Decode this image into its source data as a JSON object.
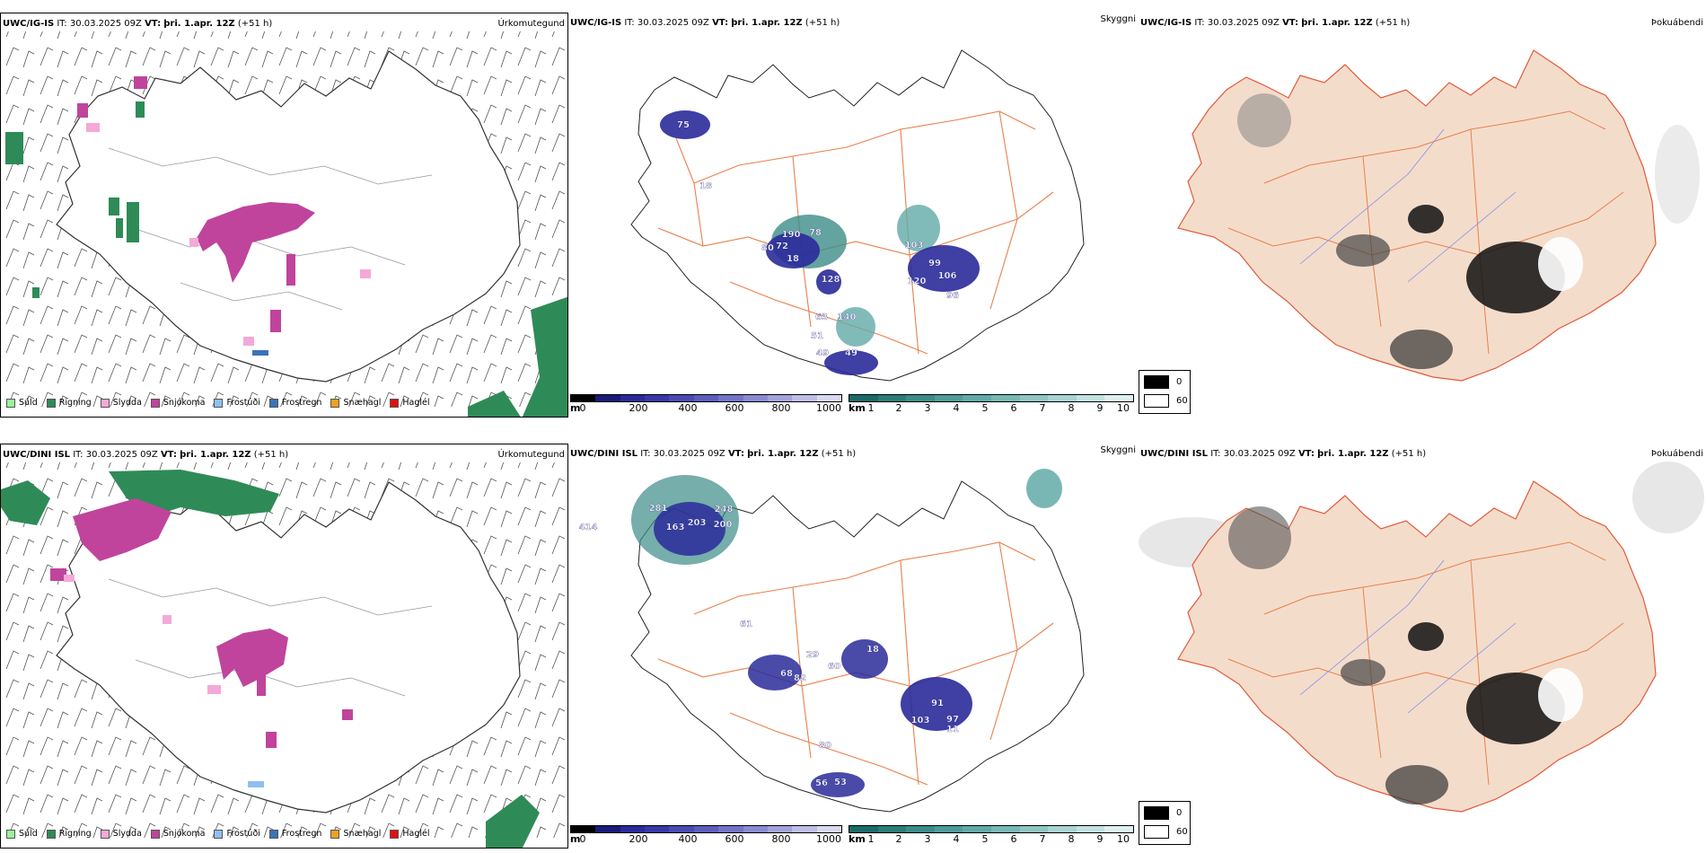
{
  "rows": [
    {
      "precip": {
        "model": "UWC/IG-IS",
        "it_label": "IT:",
        "it_value": "30.03.2025 09Z",
        "vt_label": "VT:",
        "vt_value": "þri. 1.apr. 12Z",
        "lead": "(+51 h)",
        "panel_name": "Úrkomutegund"
      },
      "cloud": {
        "model": "UWC/IG-IS",
        "it_label": "IT:",
        "it_value": "30.03.2025 09Z",
        "vt_label": "VT:",
        "vt_value": "þri. 1.apr. 12Z",
        "lead": "(+51 h)",
        "panel_name": "Skyggni",
        "labels": [
          "75",
          "18",
          "190",
          "18",
          "103",
          "99",
          "120",
          "106",
          "96",
          "80",
          "72",
          "78",
          "128",
          "63",
          "51",
          "49",
          "49",
          "140"
        ]
      },
      "fog": {
        "model": "UWC/IG-IS",
        "it_label": "IT:",
        "it_value": "30.03.2025 09Z",
        "vt_label": "VT:",
        "vt_value": "þri. 1.apr. 12Z",
        "lead": "(+51 h)",
        "panel_name": "Þokuábendi"
      }
    },
    {
      "precip": {
        "model": "UWC/DINI ISL",
        "it_label": "IT:",
        "it_value": "30.03.2025 09Z",
        "vt_label": "VT:",
        "vt_value": "þri. 1.apr. 12Z",
        "lead": "(+51 h)",
        "panel_name": "Úrkomutegund"
      },
      "cloud": {
        "model": "UWC/DINI ISL",
        "it_label": "IT:",
        "it_value": "30.03.2025 09Z",
        "vt_label": "VT:",
        "vt_value": "þri. 1.apr. 12Z",
        "lead": "(+51 h)",
        "panel_name": "Skyggni",
        "labels": [
          "414",
          "281",
          "203",
          "200",
          "248",
          "163",
          "68",
          "29",
          "60",
          "18",
          "82",
          "91",
          "103",
          "97",
          "11",
          "80",
          "56",
          "53",
          "61"
        ]
      },
      "fog": {
        "model": "UWC/DINI ISL",
        "it_label": "IT:",
        "it_value": "30.03.2025 09Z",
        "vt_label": "VT:",
        "vt_value": "þri. 1.apr. 12Z",
        "lead": "(+51 h)",
        "panel_name": "Þokuábendi"
      }
    }
  ],
  "precip_legend": [
    {
      "label": "Súld",
      "color": "#98f598"
    },
    {
      "label": "Rigning",
      "color": "#2e8b57"
    },
    {
      "label": "Slydda",
      "color": "#f4a9d8"
    },
    {
      "label": "Snjókoma",
      "color": "#c0449c"
    },
    {
      "label": "Frostúði",
      "color": "#8fbfee"
    },
    {
      "label": "Frostregn",
      "color": "#3a73b8"
    },
    {
      "label": "Snæhagl",
      "color": "#f0a020"
    },
    {
      "label": "Haglél",
      "color": "#e01010"
    }
  ],
  "cloudbase_bar": {
    "unit": "m",
    "ticks": [
      "0",
      "200",
      "400",
      "600",
      "800",
      "1000"
    ],
    "colors": [
      "#000000",
      "#1a1a7a",
      "#2a2a9a",
      "#3838a8",
      "#4a4ab4",
      "#5d5dbe",
      "#7373c8",
      "#8a8ad2",
      "#a3a3dc",
      "#bdbde6",
      "#d8d8f0"
    ]
  },
  "visibility_bar": {
    "unit": "km",
    "ticks": [
      "1",
      "2",
      "3",
      "4",
      "5",
      "6",
      "7",
      "8",
      "9",
      "10"
    ],
    "colors": [
      "#1a6b66",
      "#2a7c77",
      "#3c8c88",
      "#4e9c98",
      "#62aaa7",
      "#78b8b5",
      "#8fc6c3",
      "#a8d4d2",
      "#c2e2e0",
      "#ddf0ef"
    ]
  },
  "fog_legend": [
    {
      "value": "0",
      "color": "#000000"
    },
    {
      "value": "60",
      "color": "#ffffff"
    }
  ],
  "colors": {
    "land_fog": "#f4dccb",
    "roads": "#e8804a",
    "rivers": "#8090e8",
    "coast": "#222222"
  }
}
